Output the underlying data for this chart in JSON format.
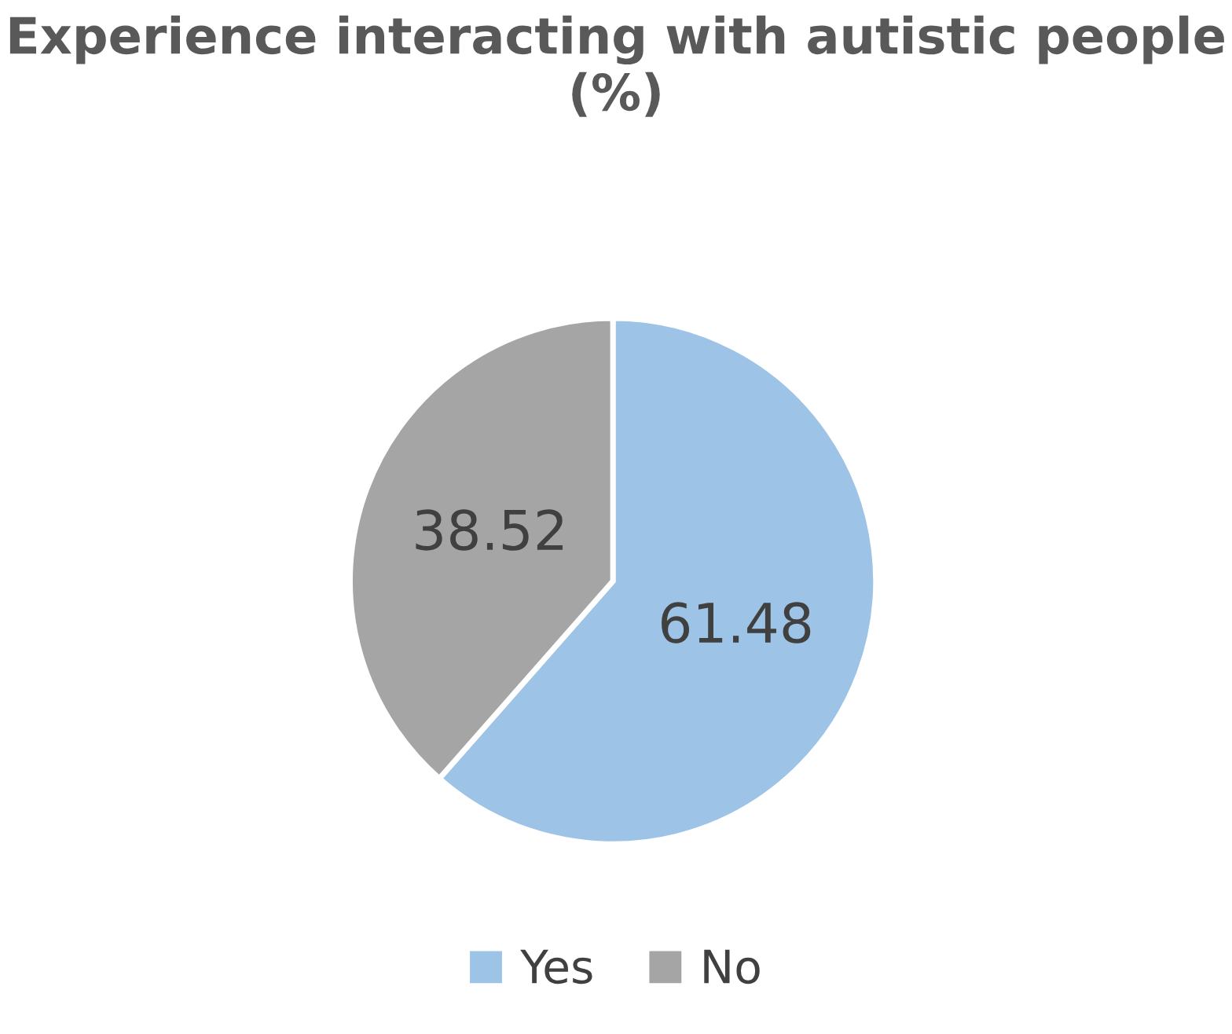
{
  "chart_data": {
    "type": "pie",
    "title": "Experience interacting with autistic people (%)",
    "categories": [
      "Yes",
      "No"
    ],
    "values": [
      61.48,
      38.52
    ],
    "colors": [
      "#9dc3e6",
      "#a5a5a5"
    ],
    "data_labels": true,
    "legend": "bottom"
  }
}
